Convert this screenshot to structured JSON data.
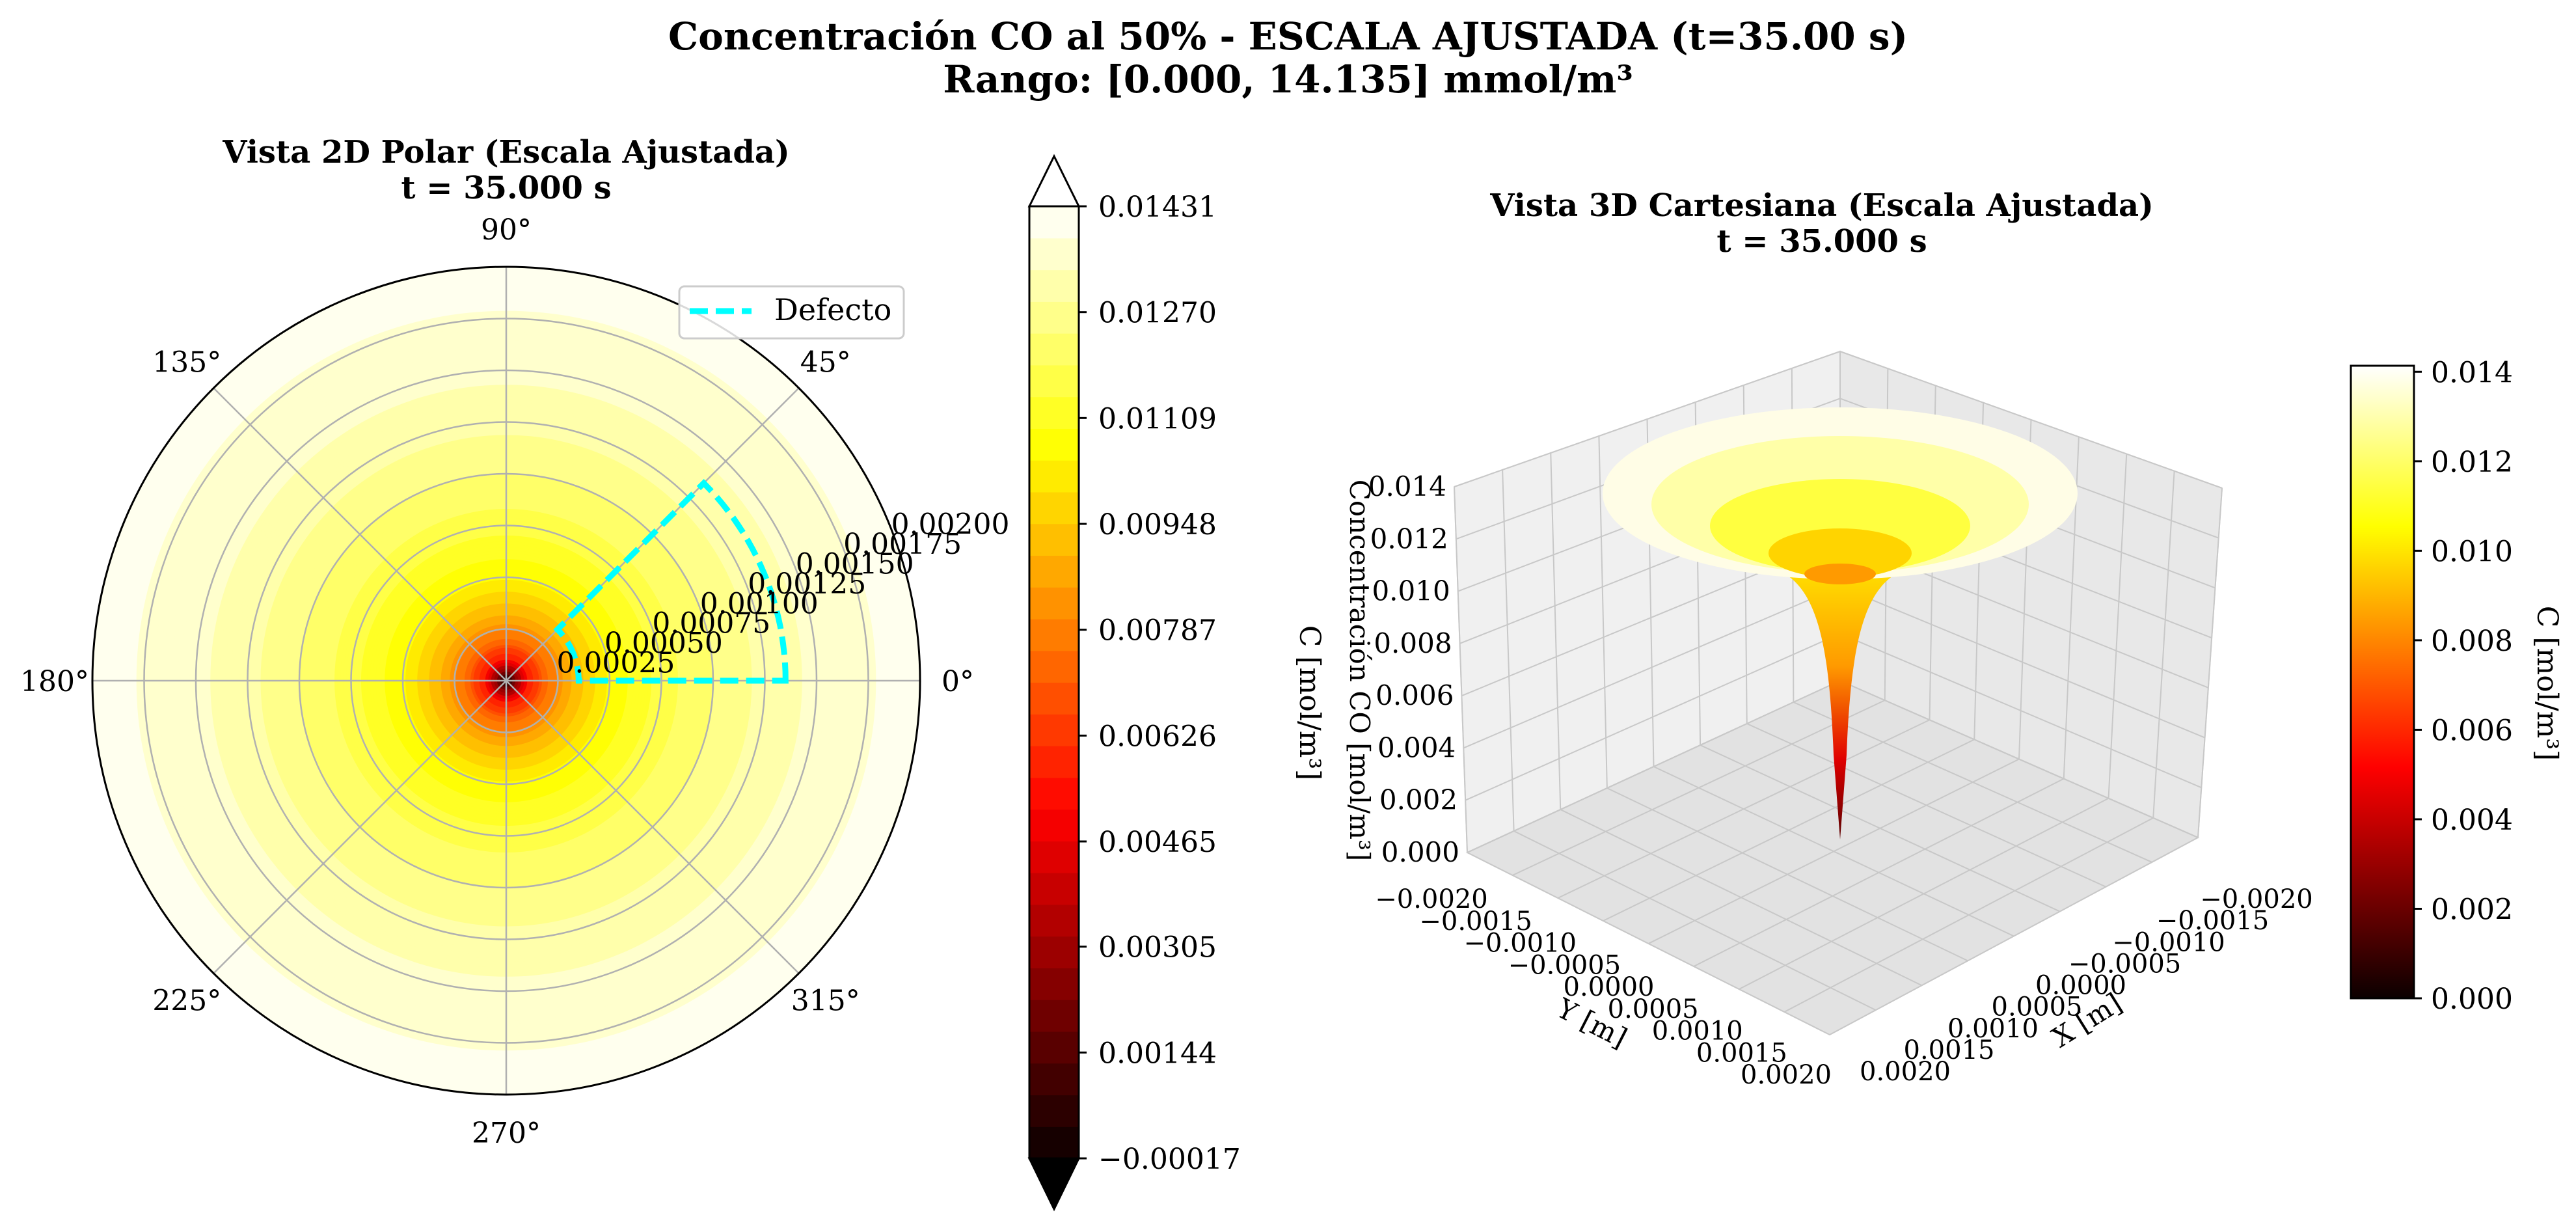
{
  "figure": {
    "title_line1": "Concentración CO al 50% - ESCALA AJUSTADA (t=35.00 s)",
    "title_line2": "Rango: [0.000, 14.135] mmol/m³"
  },
  "chart_data": [
    {
      "type": "heatmap",
      "projection": "polar",
      "title": "Vista 2D Polar (Escala Ajustada)",
      "subtitle": "t = 35.000 s",
      "angle_ticks": [
        "0°",
        "45°",
        "90°",
        "135°",
        "180°",
        "225°",
        "270°",
        "315°"
      ],
      "angle_tick_values": [
        0,
        45,
        90,
        135,
        180,
        225,
        270,
        315
      ],
      "radial_ticks": [
        "0.00025",
        "0.00050",
        "0.00075",
        "0.00100",
        "0.00125",
        "0.00150",
        "0.00175",
        "0.00200"
      ],
      "radial_tick_values": [
        0.00025,
        0.0005,
        0.00075,
        0.001,
        0.00125,
        0.0015,
        0.00175,
        0.002
      ],
      "rlim": [
        0,
        0.002
      ],
      "radial_profile": {
        "r": [
          0,
          0.0001,
          0.0002,
          0.0003,
          0.0004,
          0.0005,
          0.0006,
          0.0008,
          0.001,
          0.0012,
          0.0014,
          0.0016,
          0.0018,
          0.002
        ],
        "c": [
          0.0,
          0.0055,
          0.0075,
          0.0088,
          0.0098,
          0.0105,
          0.011,
          0.0118,
          0.0124,
          0.0129,
          0.0133,
          0.0136,
          0.01385,
          0.01413
        ]
      },
      "defect_region": {
        "theta": [
          0,
          45
        ],
        "r": [
          0.00035,
          0.00135
        ]
      },
      "legend": {
        "entries": [
          "Defecto"
        ],
        "placement": "upper-right"
      },
      "grid": true,
      "colors": {
        "defect": "#00ffff",
        "grid": "#b0b0b0"
      }
    },
    {
      "type": "colorbar",
      "levels": "filled contour",
      "vmin": -0.00017,
      "vmax": 0.01431,
      "extend": "both",
      "ticks": [
        "0.01431",
        "0.01270",
        "0.01109",
        "0.00948",
        "0.00787",
        "0.00626",
        "0.00465",
        "0.00305",
        "0.00144",
        "−0.00017"
      ],
      "tick_values": [
        0.01431,
        0.0127,
        0.01109,
        0.00948,
        0.00787,
        0.00626,
        0.00465,
        0.00305,
        0.00144,
        -0.00017
      ],
      "colormap": "hot"
    },
    {
      "type": "surface",
      "title": "Vista 3D Cartesiana (Escala Ajustada)",
      "subtitle": "t = 35.000 s",
      "xlabel": "X [m]",
      "ylabel": "Y [m]",
      "zlabel": "Concentración CO [mol/m³]",
      "x_ticks": [
        "−0.0020",
        "−0.0015",
        "−0.0010",
        "−0.0005",
        "0.0000",
        "0.0005",
        "0.0010",
        "0.0015",
        "0.0020"
      ],
      "y_ticks": [
        "−0.0020",
        "−0.0015",
        "−0.0010",
        "−0.0005",
        "0.0000",
        "0.0005",
        "0.0010",
        "0.0015",
        "0.0020"
      ],
      "z_ticks": [
        "0.000",
        "0.002",
        "0.004",
        "0.006",
        "0.008",
        "0.010",
        "0.012",
        "0.014"
      ],
      "xlim": [
        -0.002,
        0.002
      ],
      "ylim": [
        -0.002,
        0.002
      ],
      "zlim": [
        0,
        0.014
      ],
      "colormap": "hot"
    },
    {
      "type": "colorbar",
      "label": "C [mol/m³]",
      "vmin": 0.0,
      "vmax": 0.014135,
      "ticks": [
        "0.000",
        "0.002",
        "0.004",
        "0.006",
        "0.008",
        "0.010",
        "0.012",
        "0.014"
      ],
      "tick_values": [
        0.0,
        0.002,
        0.004,
        0.006,
        0.008,
        0.01,
        0.012,
        0.014
      ],
      "colormap": "hot"
    }
  ],
  "left_axis_label": "C [mol/m³]"
}
